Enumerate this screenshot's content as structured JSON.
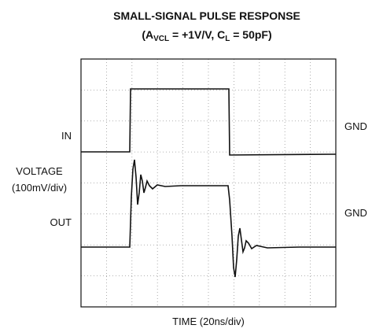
{
  "title": {
    "line1": "SMALL-SIGNAL PULSE RESPONSE",
    "line2_a": "(A",
    "line2_a_sub": "VCL",
    "line2_b": " = +1V/V, C",
    "line2_b_sub": "L",
    "line2_c": " = 50pF)"
  },
  "labels": {
    "in": "IN",
    "in_ground": "GND",
    "voltage": "VOLTAGE",
    "voltage_scale": "(100mV/div)",
    "out": "OUT",
    "out_ground": "GND",
    "time": "TIME (20ns/div)"
  }
}
